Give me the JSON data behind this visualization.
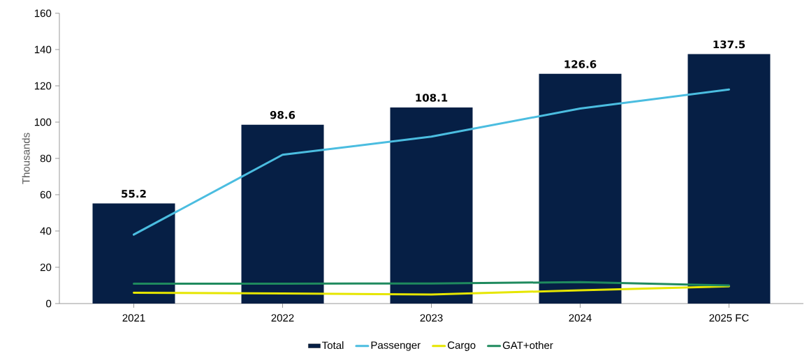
{
  "chart_data": {
    "type": "bar",
    "ylabel": "Thousands",
    "categories": [
      "2021",
      "2022",
      "2023",
      "2024",
      "2025 FC"
    ],
    "series": [
      {
        "name": "Total",
        "color": "#061f45",
        "values": [
          55.2,
          98.6,
          108.1,
          126.6,
          137.5
        ],
        "value_labels": [
          "55.2",
          "98.6",
          "108.1",
          "126.6",
          "137.5"
        ]
      },
      {
        "name": "Passenger",
        "type": "line",
        "color": "#4bbde0",
        "values": [
          38,
          82,
          92,
          107.5,
          118
        ]
      },
      {
        "name": "Cargo",
        "type": "line",
        "color": "#e6e600",
        "values": [
          6,
          5.6,
          5,
          7.3,
          9.5
        ]
      },
      {
        "name": "GAT+other",
        "type": "line",
        "color": "#1f8a5e",
        "values": [
          11,
          11,
          11.1,
          11.8,
          10
        ]
      }
    ],
    "ylim": [
      0,
      160
    ],
    "yticks": [
      0,
      20,
      40,
      60,
      80,
      100,
      120,
      140,
      160
    ],
    "legend": "bottom",
    "grid": false,
    "marker": "none"
  }
}
